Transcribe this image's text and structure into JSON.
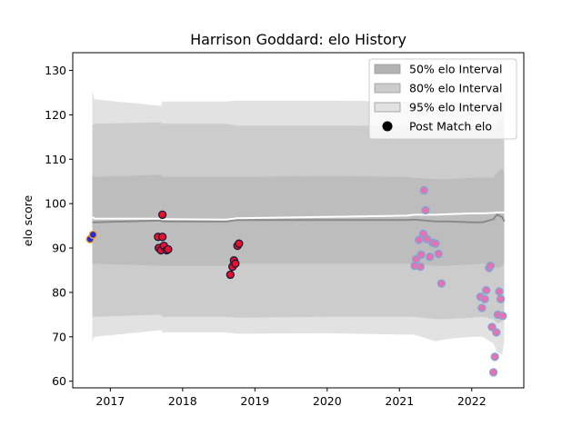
{
  "chart_data": {
    "type": "scatter",
    "title": "Harrison Goddard: elo History",
    "xlabel": "",
    "ylabel": "elo score",
    "xlim": [
      2016.48,
      2022.72
    ],
    "ylim": [
      58.5,
      134.0
    ],
    "x_ticks": [
      2017,
      2018,
      2019,
      2020,
      2021,
      2022
    ],
    "y_ticks": [
      60,
      70,
      80,
      90,
      100,
      110,
      120,
      130
    ],
    "grid": false,
    "legend_position": "upper-right",
    "legend": [
      {
        "label": "50% elo Interval",
        "kind": "band",
        "color": "#b3b3b3"
      },
      {
        "label": "80% elo Interval",
        "kind": "band",
        "color": "#cccccc"
      },
      {
        "label": "95% elo Interval",
        "kind": "band",
        "color": "#e2e2e2"
      },
      {
        "label": "Post Match elo",
        "kind": "marker",
        "color": "#000000"
      }
    ],
    "bands": {
      "x": [
        2016.75,
        2016.78,
        2017.7,
        2017.72,
        2018.6,
        2018.75,
        2020.0,
        2021.1,
        2021.2,
        2021.5,
        2021.65,
        2022.0,
        2022.15,
        2022.3,
        2022.35,
        2022.42,
        2022.45
      ],
      "p95": {
        "upper": [
          125.5,
          123.5,
          122.0,
          123.0,
          123.0,
          123.2,
          123.2,
          123.0,
          122.8,
          122.5,
          122.5,
          122.3,
          122.3,
          122.2,
          123.5,
          125.0,
          124.0
        ],
        "lower": [
          69.0,
          70.0,
          71.5,
          71.0,
          71.0,
          70.7,
          70.8,
          70.5,
          70.5,
          69.0,
          69.5,
          70.0,
          70.0,
          68.5,
          66.5,
          66.0,
          69.0
        ]
      },
      "p80": {
        "upper": [
          117.5,
          118.0,
          118.3,
          118.0,
          118.0,
          117.6,
          117.6,
          117.5,
          117.0,
          117.0,
          117.0,
          117.0,
          116.8,
          116.8,
          118.0,
          119.5,
          118.5
        ],
        "lower": [
          74.5,
          74.5,
          75.0,
          74.5,
          74.5,
          74.3,
          74.5,
          74.5,
          74.5,
          74.0,
          74.0,
          74.3,
          74.5,
          74.0,
          73.0,
          73.5,
          74.5
        ]
      },
      "p50": {
        "upper": [
          106.5,
          106.0,
          106.5,
          106.0,
          106.0,
          106.0,
          106.2,
          106.0,
          105.8,
          105.5,
          105.5,
          105.8,
          105.8,
          105.8,
          107.0,
          108.0,
          107.0
        ],
        "lower": [
          86.5,
          86.5,
          86.0,
          86.0,
          86.0,
          86.5,
          86.5,
          86.5,
          86.5,
          86.0,
          86.0,
          86.3,
          86.5,
          86.0,
          85.5,
          86.0,
          86.5
        ]
      },
      "median": [
        95.8,
        95.8,
        96.2,
        96.0,
        96.0,
        96.3,
        96.3,
        96.3,
        96.4,
        96.0,
        96.0,
        95.8,
        95.8,
        96.5,
        97.5,
        97.0,
        96.0
      ],
      "mean": [
        97.0,
        96.6,
        96.6,
        96.5,
        96.4,
        96.7,
        97.0,
        97.3,
        97.5,
        97.5,
        97.6,
        97.8,
        97.8,
        97.9,
        98.0,
        98.0,
        98.0
      ]
    },
    "series": [
      {
        "marker_fill": "#2b2bd6",
        "marker_edge": "#f5a623",
        "x": [
          2016.72,
          2016.76
        ],
        "y": [
          92.0,
          93.0
        ]
      },
      {
        "marker_fill": "#e8102a",
        "marker_edge": "#1a1a3a",
        "x": [
          2017.66,
          2017.67,
          2017.7,
          2017.72,
          2017.72,
          2017.74,
          2017.78,
          2017.8,
          2018.66,
          2018.69,
          2018.71,
          2018.73,
          2018.76,
          2018.78
        ],
        "y": [
          92.5,
          90.0,
          89.5,
          97.5,
          92.5,
          90.5,
          89.5,
          89.7,
          84.0,
          85.8,
          87.2,
          86.5,
          90.5,
          91.0
        ]
      },
      {
        "marker_fill": "#ec6fb0",
        "marker_edge": "#7aa8d6",
        "x": [
          2021.21,
          2021.23,
          2021.27,
          2021.29,
          2021.3,
          2021.33,
          2021.34,
          2021.36,
          2021.38,
          2021.42,
          2021.46,
          2021.5,
          2021.54,
          2021.58,
          2022.12,
          2022.14,
          2022.18,
          2022.2,
          2022.24,
          2022.26,
          2022.28,
          2022.3,
          2022.32,
          2022.34,
          2022.36,
          2022.38,
          2022.4,
          2022.43
        ],
        "y": [
          86.0,
          87.5,
          91.8,
          85.8,
          88.5,
          93.2,
          103.0,
          98.5,
          92.0,
          88.0,
          91.2,
          91.0,
          88.7,
          82.0,
          79.0,
          76.5,
          78.5,
          80.5,
          85.5,
          86.0,
          72.2,
          62.0,
          65.5,
          71.0,
          75.0,
          80.2,
          78.5,
          74.7
        ]
      }
    ]
  }
}
